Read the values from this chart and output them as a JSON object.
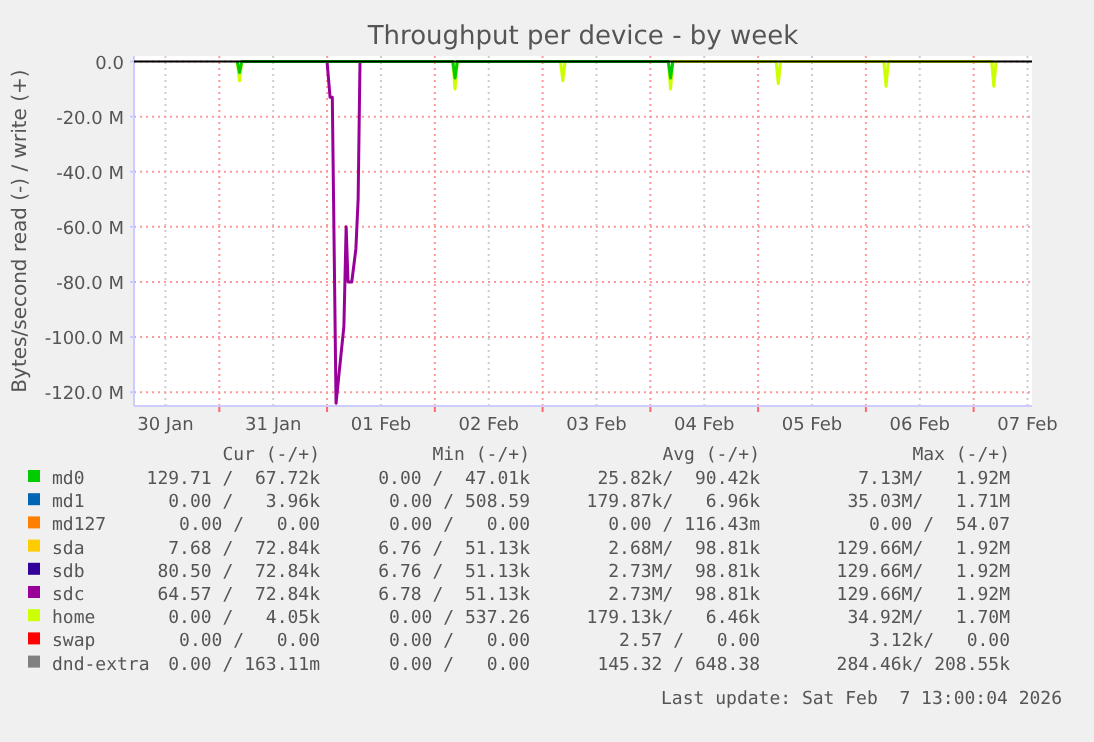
{
  "chart_data": {
    "type": "line",
    "title": "Throughput per device - by week",
    "ylabel": "Bytes/second read (-) / write (+)",
    "xlim": [
      "2026-01-30T05:00",
      "2026-02-07T13:00"
    ],
    "xticks": [
      {
        "value": "2026-01-30T12:00",
        "label": "30 Jan"
      },
      {
        "value": "2026-01-31T00:00",
        "label": null
      },
      {
        "value": "2026-01-31T12:00",
        "label": "31 Jan"
      },
      {
        "value": "2026-02-01T00:00",
        "label": null
      },
      {
        "value": "2026-02-01T12:00",
        "label": "01 Feb"
      },
      {
        "value": "2026-02-02T00:00",
        "label": null
      },
      {
        "value": "2026-02-02T12:00",
        "label": "02 Feb"
      },
      {
        "value": "2026-02-03T00:00",
        "label": null
      },
      {
        "value": "2026-02-03T12:00",
        "label": "03 Feb"
      },
      {
        "value": "2026-02-04T00:00",
        "label": null
      },
      {
        "value": "2026-02-04T12:00",
        "label": "04 Feb"
      },
      {
        "value": "2026-02-05T00:00",
        "label": null
      },
      {
        "value": "2026-02-05T12:00",
        "label": "05 Feb"
      },
      {
        "value": "2026-02-06T00:00",
        "label": null
      },
      {
        "value": "2026-02-06T12:00",
        "label": "06 Feb"
      },
      {
        "value": "2026-02-07T00:00",
        "label": null
      },
      {
        "value": "2026-02-07T12:00",
        "label": "07 Feb"
      }
    ],
    "ylim": [
      -125,
      2
    ],
    "yticks": [
      {
        "value": 0,
        "label": "0.0"
      },
      {
        "value": -20,
        "label": "-20.0 M"
      },
      {
        "value": -40,
        "label": "-40.0 M"
      },
      {
        "value": -60,
        "label": "-60.0 M"
      },
      {
        "value": -80,
        "label": "-80.0 M"
      },
      {
        "value": -100,
        "label": "-100.0 M"
      },
      {
        "value": -120,
        "label": "-120.0 M"
      }
    ],
    "grid": true,
    "legend": "bottom",
    "marker": "none",
    "line_style": "solid",
    "series": [
      {
        "name": "md0",
        "color": "#00cc00",
        "x": [
          "2026-01-31T04:00",
          "2026-01-31T04:30",
          "2026-01-31T05:00",
          "2026-02-02T04:00",
          "2026-02-02T04:30",
          "2026-02-02T05:00",
          "2026-02-04T04:00",
          "2026-02-04T04:30",
          "2026-02-04T05:00"
        ],
        "values": [
          0,
          -4,
          0,
          0,
          -6,
          0,
          0,
          -6,
          0
        ]
      },
      {
        "name": "md1",
        "color": "#0066b3"
      },
      {
        "name": "md127",
        "color": "#ff8000"
      },
      {
        "name": "sda",
        "color": "#ffcc00"
      },
      {
        "name": "sdb",
        "color": "#330099"
      },
      {
        "name": "sdc",
        "color": "#990099",
        "x": [
          "2026-02-01T00:00",
          "2026-02-01T00:40",
          "2026-02-01T01:10",
          "2026-02-01T02:00",
          "2026-02-01T02:30",
          "2026-02-01T03:45",
          "2026-02-01T04:15",
          "2026-02-01T04:40",
          "2026-02-01T05:30",
          "2026-02-01T06:25",
          "2026-02-01T06:55",
          "2026-02-01T07:20"
        ],
        "values": [
          0,
          -13,
          -13,
          -124,
          -116,
          -96,
          -60,
          -80,
          -80,
          -68,
          -50,
          0
        ]
      },
      {
        "name": "home",
        "color": "#ccff00",
        "x": [
          "2026-01-31T04:00",
          "2026-01-31T04:30",
          "2026-01-31T05:00",
          "2026-02-02T04:00",
          "2026-02-02T04:30",
          "2026-02-02T05:00",
          "2026-02-03T04:00",
          "2026-02-03T04:30",
          "2026-02-03T05:00",
          "2026-02-04T04:00",
          "2026-02-04T04:30",
          "2026-02-04T05:00",
          "2026-02-05T04:00",
          "2026-02-05T04:30",
          "2026-02-05T05:00",
          "2026-02-06T04:00",
          "2026-02-06T04:30",
          "2026-02-06T05:00",
          "2026-02-07T04:00",
          "2026-02-07T04:30",
          "2026-02-07T05:00"
        ],
        "values": [
          0,
          -7,
          0,
          0,
          -10,
          0,
          0,
          -7,
          0,
          0,
          -10,
          0,
          0,
          -8,
          0,
          0,
          -9,
          0,
          0,
          -9,
          0
        ]
      },
      {
        "name": "swap",
        "color": "#ff0000"
      },
      {
        "name": "dnd-extra",
        "color": "#808080"
      }
    ],
    "annotations": [
      "Cur (-/+)",
      "Min (-/+)",
      "Avg (-/+)",
      "Max (-/+)",
      "129.71 /  67.72k",
      "0.00 /  47.01k",
      "25.82k/  90.42k",
      "7.13M/   1.92M",
      "0.00 /   3.96k",
      "0.00 / 508.59",
      "179.87k/   6.96k",
      "35.03M/   1.71M",
      "0.00 /   0.00",
      "0.00 /   0.00",
      "0.00 / 116.43m",
      "0.00 /  54.07",
      "7.68 /  72.84k",
      "6.76 /  51.13k",
      "2.68M/  98.81k",
      "129.66M/   1.92M",
      "80.50 /  72.84k",
      "6.76 /  51.13k",
      "2.73M/  98.81k",
      "129.66M/   1.92M",
      "64.57 /  72.84k",
      "6.78 /  51.13k",
      "2.73M/  98.81k",
      "129.66M/   1.92M",
      "0.00 /   4.05k",
      "0.00 / 537.26",
      "179.13k/   6.46k",
      "34.92M/   1.70M",
      "0.00 /   0.00",
      "0.00 /   0.00",
      "2.57 /   0.00",
      "3.12k/   0.00",
      "0.00 / 163.11m",
      "0.00 /   0.00",
      "145.32 / 648.38",
      "284.46k/ 208.55k",
      "Last update: Sat Feb  7 13:00:04 2026"
    ]
  }
}
